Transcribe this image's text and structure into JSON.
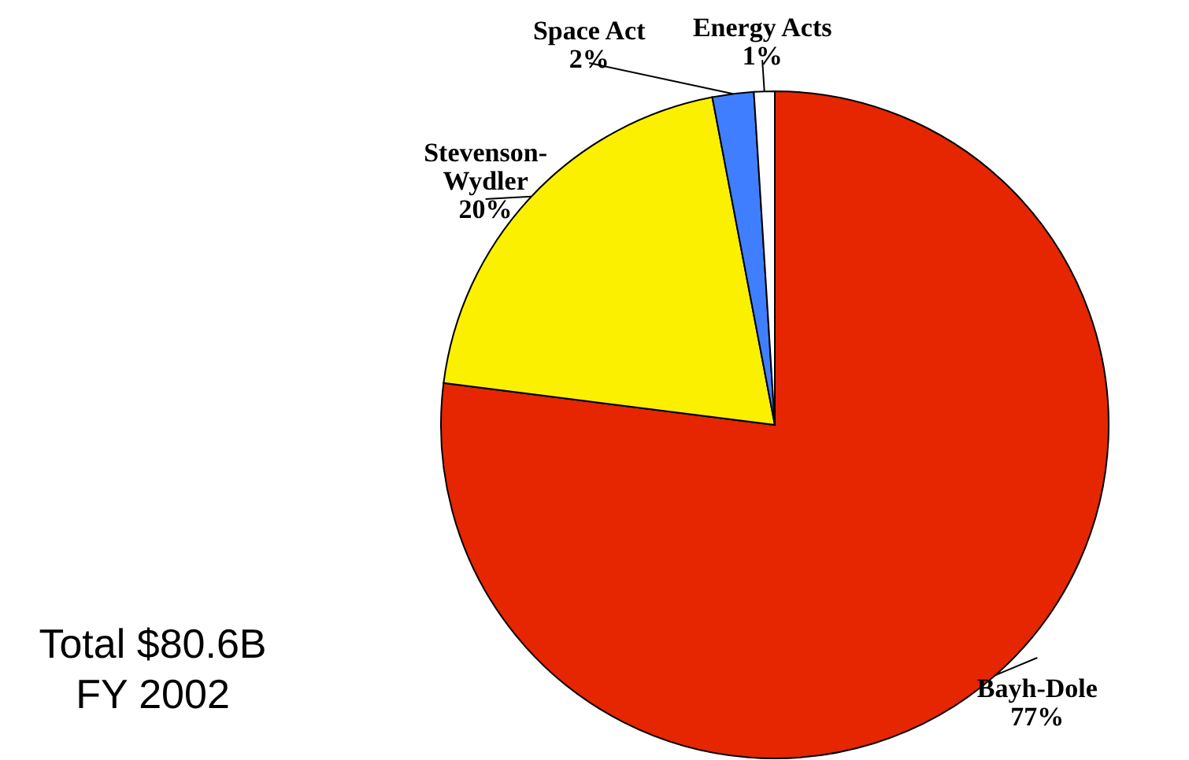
{
  "chart_data": {
    "type": "pie",
    "categories": [
      "Bayh-Dole",
      "Stevenson-Wydler",
      "Space Act",
      "Energy Acts"
    ],
    "values": [
      77,
      20,
      2,
      1
    ],
    "colors": [
      "#e52600",
      "#fbf000",
      "#3f7fff",
      "#ffffff"
    ],
    "value_labels": [
      "77%",
      "20%",
      "2%",
      "1%"
    ],
    "annotations": [
      "Total $80.6B",
      "FY 2002"
    ]
  }
}
